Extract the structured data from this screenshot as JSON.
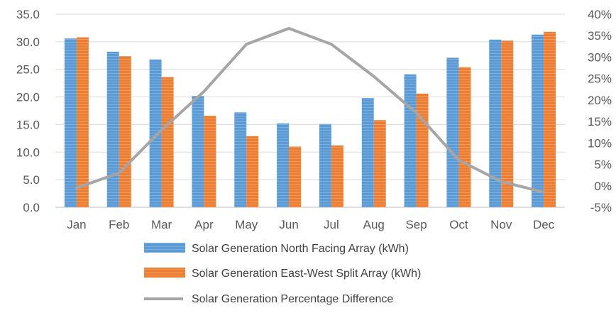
{
  "chart_data": {
    "type": "bar",
    "title": "",
    "xlabel": "",
    "ylabel": "",
    "y2label": "",
    "categories": [
      "Jan",
      "Feb",
      "Mar",
      "Apr",
      "May",
      "Jun",
      "Jul",
      "Aug",
      "Sep",
      "Oct",
      "Nov",
      "Dec"
    ],
    "series": [
      {
        "name": "Solar Generation North Facing Array (kWh)",
        "type": "bar",
        "axis": "left",
        "color": "#5B9BD5",
        "values": [
          30.6,
          28.2,
          26.8,
          20.2,
          17.2,
          15.2,
          15.1,
          19.8,
          24.1,
          27.1,
          30.4,
          31.3
        ]
      },
      {
        "name": "Solar Generation East-West Split Array (kWh)",
        "type": "bar",
        "axis": "left",
        "color": "#ED7D31",
        "values": [
          30.8,
          27.4,
          23.6,
          16.6,
          12.9,
          11.0,
          11.2,
          15.8,
          20.6,
          25.4,
          30.2,
          31.8
        ]
      },
      {
        "name": "Solar Generation Percentage Difference",
        "type": "line",
        "axis": "right",
        "color": "#A5A5A5",
        "values": [
          -0.5,
          3.0,
          13.0,
          22.0,
          33.0,
          36.7,
          33.0,
          25.5,
          17.0,
          6.0,
          1.0,
          -1.5
        ]
      }
    ],
    "ylim": [
      0,
      35
    ],
    "yticks": [
      "0.0",
      "5.0",
      "10.0",
      "15.0",
      "20.0",
      "25.0",
      "30.0",
      "35.0"
    ],
    "y2lim": [
      -5,
      40
    ],
    "y2ticks": [
      "-5%",
      "0%",
      "5%",
      "10%",
      "15%",
      "20%",
      "25%",
      "30%",
      "35%",
      "40%"
    ],
    "grid": true,
    "legend_position": "bottom"
  }
}
